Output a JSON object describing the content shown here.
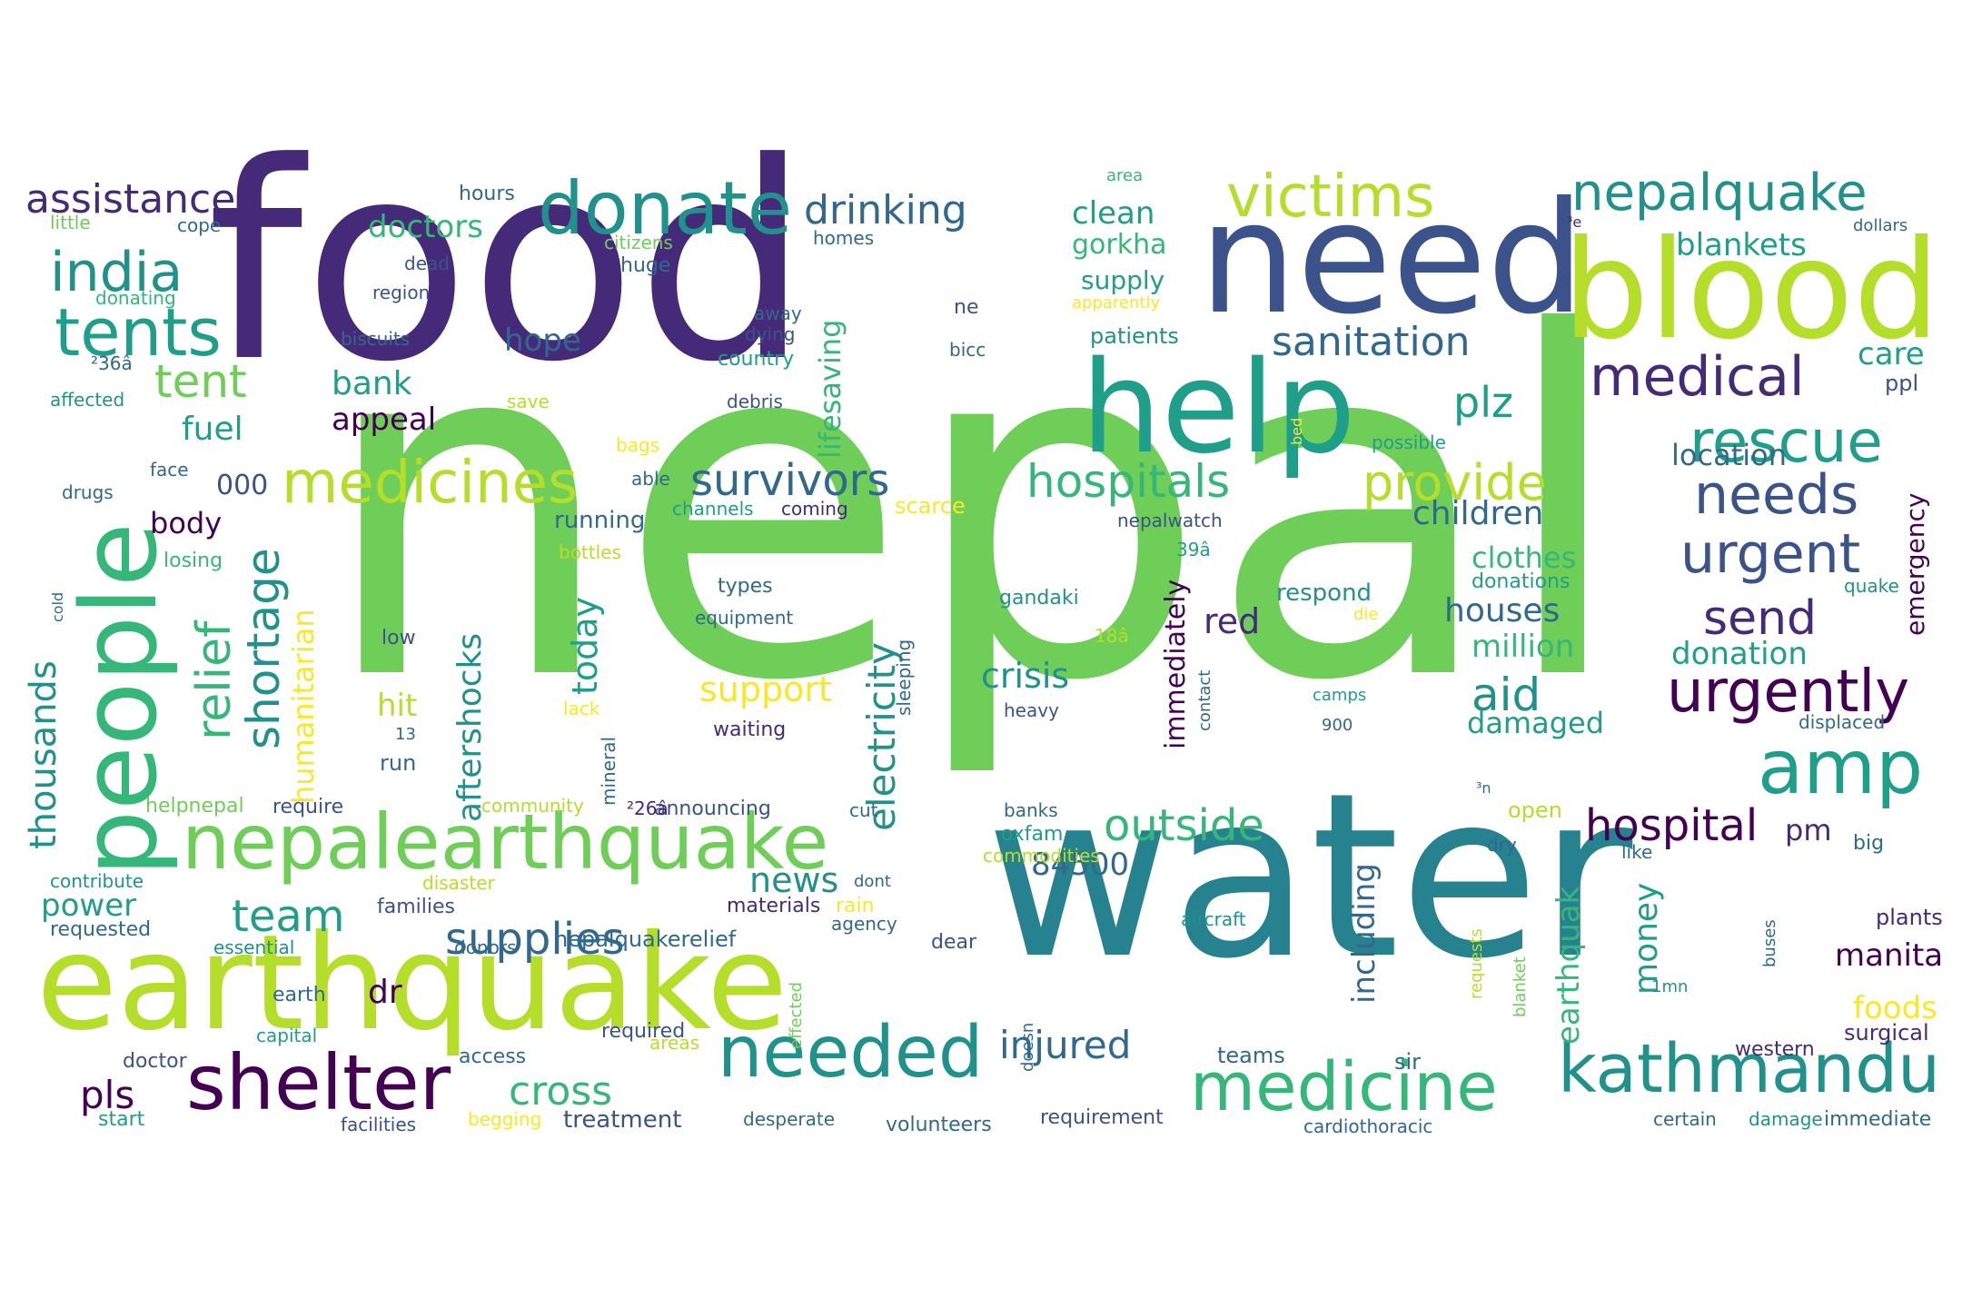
{
  "palette": {
    "background": "#ffffff",
    "dark_purple": "#462a7a",
    "indigo": "#3b528b",
    "blue": "#31688e",
    "teal_blue": "#26828e",
    "teal": "#21918c",
    "green_teal": "#1f9e89",
    "sea_green": "#35b779",
    "green": "#6ece58",
    "lime": "#b5de2b",
    "yellow": "#fde725",
    "deep_purple": "#440154"
  },
  "words": [
    "food",
    "nepal",
    "water",
    "need",
    "blood",
    "help",
    "earthquake",
    "people",
    "donate",
    "victims",
    "nepalquake",
    "india",
    "tents",
    "assistance",
    "medicines",
    "nepalearthquake",
    "shelter",
    "needed",
    "medicine",
    "kathmandu",
    "rescue",
    "medical",
    "urgent",
    "needs",
    "urgently",
    "amp",
    "survivors",
    "hospitals",
    "provide",
    "supplies",
    "outside",
    "hospital",
    "relief",
    "shortage",
    "drinking",
    "sanitation",
    "tent",
    "doctors",
    "clean",
    "gorkha",
    "blankets",
    "plz",
    "aid",
    "send",
    "crisis",
    "support",
    "electricity",
    "humanitarian",
    "aftershocks",
    "thousands",
    "today",
    "lifesaving",
    "team",
    "cross",
    "injured",
    "84500",
    "news",
    "including",
    "money",
    "earthquak",
    "children",
    "houses",
    "million",
    "donation",
    "emergency",
    "location",
    "care",
    "hope",
    "bank",
    "appeal",
    "fuel",
    "000",
    "body",
    "red",
    "hit",
    "power",
    "pls",
    "dr",
    "immediately",
    "respond",
    "clothes",
    "donations",
    "damaged",
    "manita",
    "foods",
    "pm",
    "supply",
    "patients",
    "hours",
    "cope",
    "little",
    "citizens",
    "homes",
    "dead",
    "huge",
    "region",
    "donating",
    "biscuits",
    "away",
    "dying",
    "ne",
    "bicc",
    "country",
    "debris",
    "save",
    "bags",
    "affected",
    "drugs",
    "face",
    "able",
    "channels",
    "coming",
    "running",
    "scarce",
    "losing",
    "bottles",
    "cold",
    "types",
    "equipment",
    "gandaki",
    "low",
    "sleeping",
    "contact",
    "waiting",
    "lack",
    "run",
    "13",
    "require",
    "helpnepal",
    "community",
    "mineral",
    "announcing",
    "cut",
    "banks",
    "oxfam",
    "commodities",
    "contribute",
    "disaster",
    "requested",
    "families",
    "materials",
    "rain",
    "agency",
    "dont",
    "essential",
    "donors",
    "dear",
    "aircraft",
    "earth",
    "capital",
    "doctor",
    "access",
    "required",
    "areas",
    "sir",
    "teams",
    "start",
    "facilities",
    "begging",
    "treatment",
    "desperate",
    "volunteers",
    "requirement",
    "cardiothoracic",
    "certain",
    "damage",
    "immediate",
    "western",
    "surgical",
    "1mn",
    "buses",
    "requests",
    "blanket",
    "effected",
    "doesn",
    "plants",
    "big",
    "like",
    "displaced",
    "quake",
    "die",
    "camps",
    "900",
    "18â",
    "39â",
    "²36â",
    "²26â",
    "³e",
    "³n",
    "area",
    "apparently",
    "possible",
    "nepalwatch",
    "nepalquakerelief",
    "bed",
    "dollars",
    "ppl",
    "heavy",
    "dry",
    "open"
  ]
}
